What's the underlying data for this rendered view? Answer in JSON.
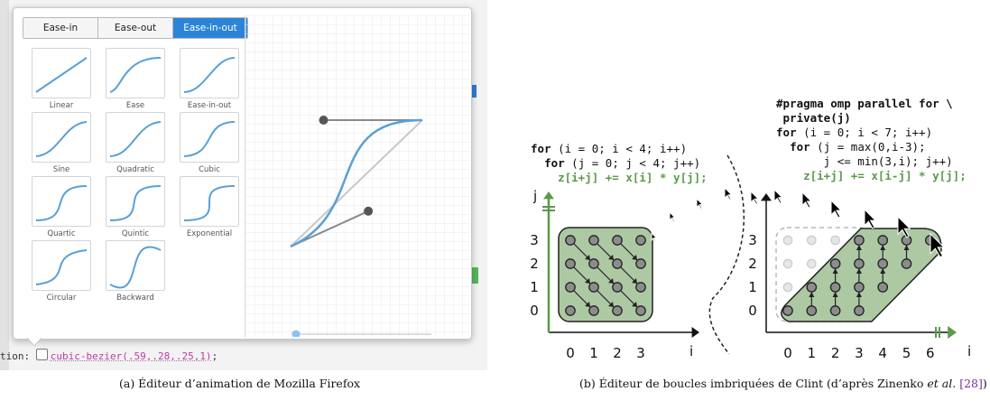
{
  "firefox_editor": {
    "tabs": [
      {
        "label": "Ease-in",
        "active": false
      },
      {
        "label": "Ease-out",
        "active": false
      },
      {
        "label": "Ease-in-out",
        "active": true
      }
    ],
    "presets": [
      {
        "label": "Linear",
        "bezier": [
          0,
          0,
          1,
          1
        ]
      },
      {
        "label": "Ease",
        "bezier": [
          0.25,
          0.1,
          0.25,
          1
        ]
      },
      {
        "label": "Ease-in-out",
        "bezier": [
          0.42,
          0,
          0.58,
          1
        ]
      },
      {
        "label": "Sine",
        "bezier": [
          0.45,
          0.05,
          0.55,
          0.95
        ]
      },
      {
        "label": "Quadratic",
        "bezier": [
          0.455,
          0.03,
          0.515,
          0.955
        ]
      },
      {
        "label": "Cubic",
        "bezier": [
          0.645,
          0.045,
          0.355,
          1
        ]
      },
      {
        "label": "Quartic",
        "bezier": [
          0.77,
          0,
          0.175,
          1
        ]
      },
      {
        "label": "Quintic",
        "bezier": [
          0.86,
          0,
          0.07,
          1
        ]
      },
      {
        "label": "Exponential",
        "bezier": [
          1,
          0,
          0,
          1
        ]
      },
      {
        "label": "Circular",
        "bezier": [
          0.785,
          0.135,
          0.15,
          0.86
        ]
      },
      {
        "label": "Backward",
        "bezier": [
          0.68,
          -0.55,
          0.265,
          1.55
        ]
      }
    ],
    "bezier": [
      0.59,
      0.28,
      0.25,
      1
    ],
    "css_property": "tion:",
    "css_value": "cubic-bezier(.59,.28,.25,1)",
    "css_suffix": ";",
    "accent_color": "#2b84d8",
    "curve_color": "#5aa0d6"
  },
  "clint_figure": {
    "left_code": [
      [
        {
          "t": "for",
          "b": true
        },
        {
          "t": " (i = 0; i < 4; i++)"
        }
      ],
      [
        {
          "t": "  "
        },
        {
          "t": "for",
          "b": true
        },
        {
          "t": " (j = 0; j < 4; j++)"
        }
      ],
      [
        {
          "t": "    z[i+j] += x[i] * y[j];",
          "g": true
        }
      ]
    ],
    "right_code": [
      [
        {
          "t": "#pragma omp parallel for \\",
          "b": true
        }
      ],
      [
        {
          "t": " private(j)",
          "b": true
        }
      ],
      [
        {
          "t": "for",
          "b": true
        },
        {
          "t": " (i = 0; i < 7; i++)"
        }
      ],
      [
        {
          "t": "  "
        },
        {
          "t": "for",
          "b": true
        },
        {
          "t": " (j = max(0,i-3);"
        }
      ],
      [
        {
          "t": "       j <= min(3,i); j++)"
        }
      ],
      [
        {
          "t": "    z[i+j] += x[i-j] * y[j];",
          "g": true
        }
      ]
    ],
    "left_plot": {
      "x_label": "i",
      "y_label": "j",
      "x_ticks": [
        "0",
        "1",
        "2",
        "3"
      ],
      "y_ticks": [
        "0",
        "1",
        "2",
        "3"
      ]
    },
    "right_plot": {
      "x_label": "i",
      "x_ticks": [
        "0",
        "1",
        "2",
        "3",
        "4",
        "5",
        "6"
      ],
      "y_ticks": [
        "0",
        "1",
        "2",
        "3"
      ]
    },
    "region_fill": "#adc9a3",
    "code_green": "#5b9a4a"
  },
  "captions": {
    "a": "(a) Éditeur d’animation de Mozilla Firefox",
    "b_before": "(b) Éditeur de boucles imbriquées de Clint (d’après Zinenko ",
    "b_etal": "et al.",
    "b_space": " ",
    "b_cite": "[28]",
    "b_after": ")"
  }
}
